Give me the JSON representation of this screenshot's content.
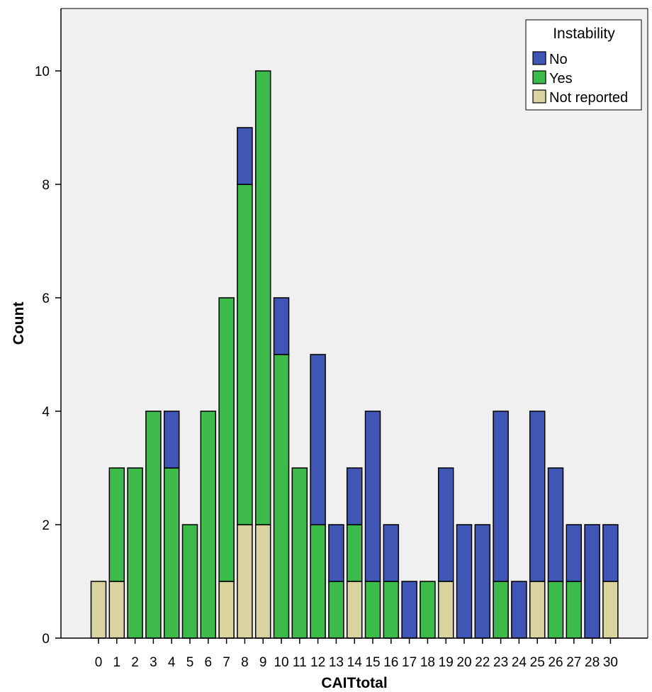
{
  "chart_data": {
    "type": "bar",
    "stacked": true,
    "xlabel": "CAITtotal",
    "ylabel": "Count",
    "ylim": [
      0,
      11
    ],
    "yticks": [
      0,
      2,
      4,
      6,
      8,
      10
    ],
    "categories": [
      "0",
      "1",
      "2",
      "3",
      "4",
      "5",
      "6",
      "7",
      "8",
      "9",
      "10",
      "11",
      "12",
      "13",
      "14",
      "15",
      "16",
      "17",
      "18",
      "19",
      "20",
      "22",
      "23",
      "24",
      "25",
      "26",
      "27",
      "28",
      "30"
    ],
    "series": [
      {
        "name": "Not reported",
        "color": "#d9d3a0",
        "values": [
          1,
          1,
          0,
          0,
          0,
          0,
          0,
          1,
          2,
          2,
          0,
          0,
          0,
          0,
          1,
          0,
          0,
          0,
          0,
          1,
          0,
          0,
          0,
          0,
          1,
          0,
          0,
          0,
          1
        ]
      },
      {
        "name": "Yes",
        "color": "#3cba4a",
        "values": [
          0,
          2,
          3,
          4,
          3,
          2,
          4,
          5,
          6,
          8,
          5,
          3,
          2,
          1,
          1,
          1,
          1,
          0,
          1,
          0,
          0,
          0,
          1,
          0,
          0,
          1,
          1,
          0,
          0
        ]
      },
      {
        "name": "No",
        "color": "#3f56b4",
        "values": [
          0,
          0,
          0,
          0,
          1,
          0,
          0,
          0,
          1,
          0,
          1,
          0,
          3,
          1,
          1,
          3,
          1,
          1,
          0,
          2,
          2,
          2,
          3,
          1,
          3,
          2,
          1,
          2,
          1
        ]
      }
    ],
    "legend": {
      "title": "Instability",
      "position": "top-right",
      "entries": [
        "No",
        "Yes",
        "Not reported"
      ]
    },
    "background": "#f0f0f0",
    "grid": false
  }
}
